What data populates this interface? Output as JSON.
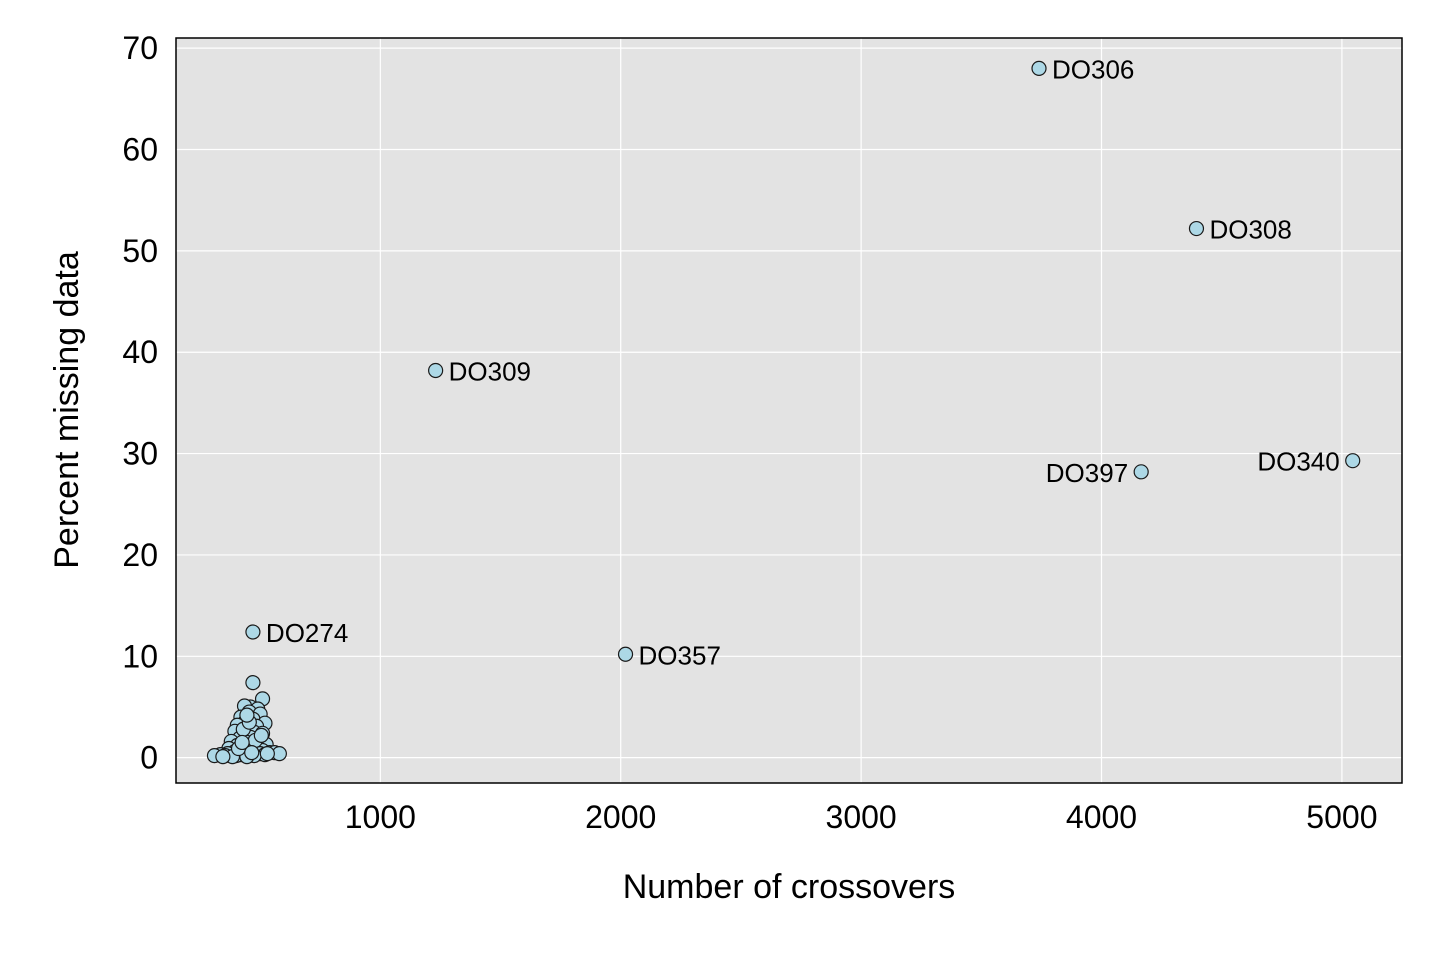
{
  "chart_data": {
    "type": "scatter",
    "xlabel": "Number of crossovers",
    "ylabel": "Percent missing data",
    "xlim": [
      150,
      5250
    ],
    "ylim": [
      -2.5,
      71
    ],
    "xticks": [
      1000,
      2000,
      3000,
      4000,
      5000
    ],
    "yticks": [
      0,
      10,
      20,
      30,
      40,
      50,
      60,
      70
    ],
    "grid": true,
    "legend": "none",
    "colors": {
      "panel": "#e3e3e3",
      "grid": "#ffffff",
      "point_fill": "#add8e6",
      "point_stroke": "#1a1a1a"
    },
    "labeled_points": [
      {
        "label": "DO306",
        "x": 3740,
        "y": 68,
        "side": "right"
      },
      {
        "label": "DO308",
        "x": 4395,
        "y": 52.2,
        "side": "right"
      },
      {
        "label": "DO309",
        "x": 1230,
        "y": 38.2,
        "side": "right"
      },
      {
        "label": "DO397",
        "x": 4165,
        "y": 28.2,
        "side": "left"
      },
      {
        "label": "DO340",
        "x": 5045,
        "y": 29.3,
        "side": "left"
      },
      {
        "label": "DO274",
        "x": 470,
        "y": 12.4,
        "side": "right"
      },
      {
        "label": "DO357",
        "x": 2020,
        "y": 10.2,
        "side": "right"
      }
    ],
    "points": [
      [
        470,
        7.4
      ],
      [
        510,
        5.8
      ],
      [
        460,
        5.0
      ],
      [
        435,
        5.1
      ],
      [
        490,
        4.8
      ],
      [
        455,
        4.5
      ],
      [
        500,
        4.3
      ],
      [
        420,
        4.0
      ],
      [
        470,
        3.8
      ],
      [
        440,
        3.6
      ],
      [
        520,
        3.4
      ],
      [
        405,
        3.2
      ],
      [
        485,
        3.1
      ],
      [
        450,
        2.9
      ],
      [
        395,
        2.6
      ],
      [
        475,
        2.5
      ],
      [
        510,
        2.4
      ],
      [
        430,
        2.2
      ],
      [
        460,
        2.0
      ],
      [
        415,
        1.9
      ],
      [
        495,
        1.8
      ],
      [
        380,
        1.6
      ],
      [
        445,
        1.5
      ],
      [
        470,
        1.4
      ],
      [
        525,
        1.3
      ],
      [
        405,
        1.2
      ],
      [
        435,
        1.0
      ],
      [
        490,
        1.0
      ],
      [
        370,
        0.9
      ],
      [
        455,
        0.8
      ],
      [
        420,
        0.7
      ],
      [
        510,
        0.7
      ],
      [
        480,
        0.6
      ],
      [
        395,
        0.6
      ],
      [
        540,
        0.5
      ],
      [
        440,
        0.5
      ],
      [
        560,
        0.5
      ],
      [
        580,
        0.4
      ],
      [
        365,
        0.4
      ],
      [
        500,
        0.4
      ],
      [
        335,
        0.3
      ],
      [
        460,
        0.3
      ],
      [
        420,
        0.3
      ],
      [
        310,
        0.2
      ],
      [
        355,
        0.2
      ],
      [
        520,
        0.3
      ],
      [
        400,
        0.2
      ],
      [
        475,
        0.2
      ],
      [
        385,
        0.1
      ],
      [
        445,
        0.1
      ],
      [
        345,
        0.1
      ],
      [
        430,
        2.8
      ],
      [
        455,
        3.5
      ],
      [
        480,
        1.7
      ],
      [
        410,
        0.9
      ],
      [
        505,
        2.2
      ],
      [
        445,
        4.2
      ],
      [
        425,
        1.5
      ],
      [
        465,
        0.5
      ],
      [
        530,
        0.4
      ]
    ]
  }
}
